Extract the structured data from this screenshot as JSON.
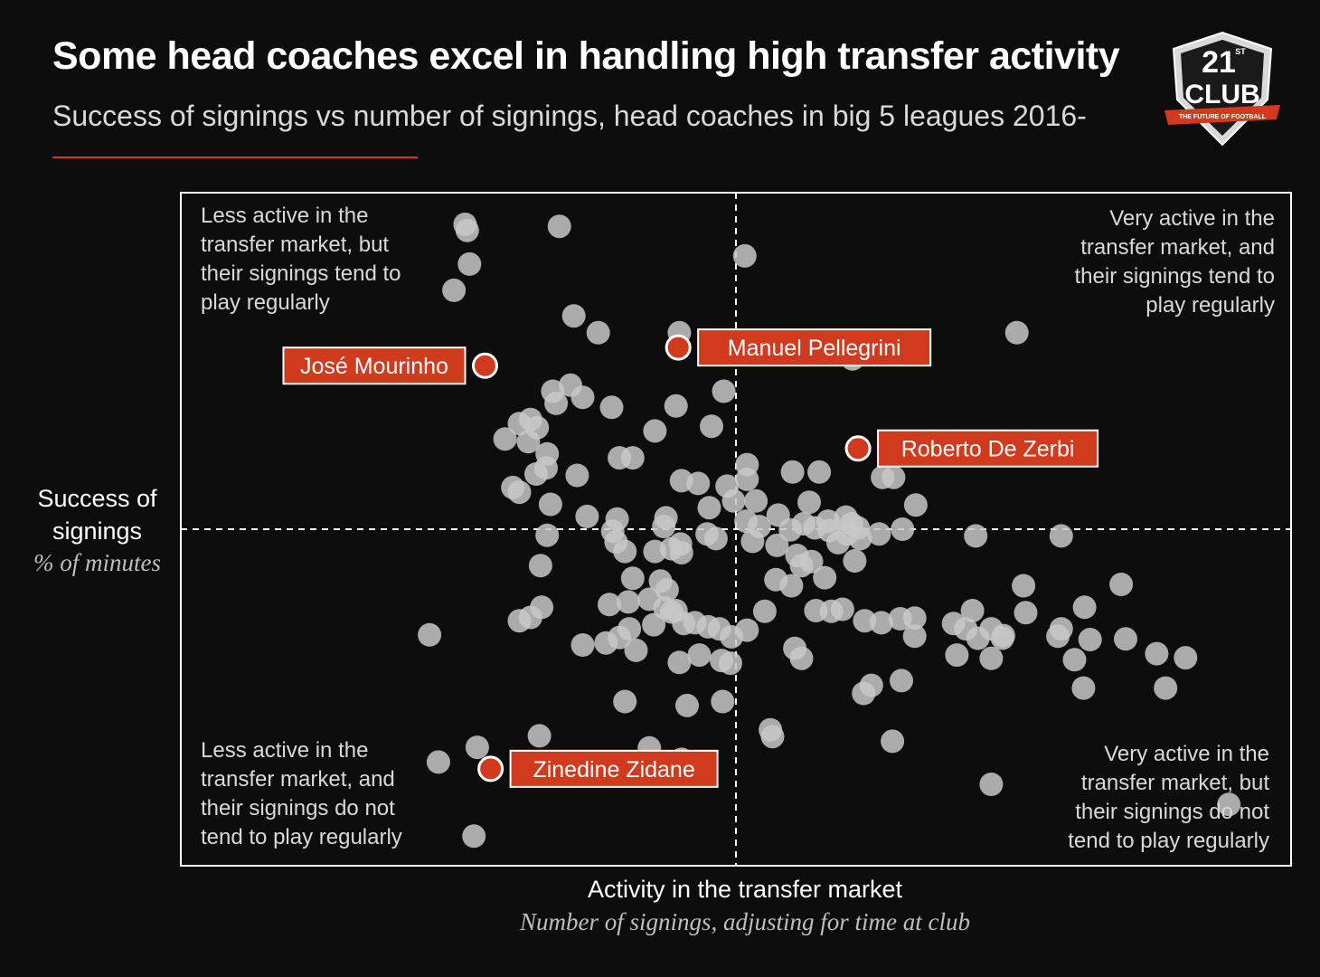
{
  "title": "Some head coaches excel in handling high transfer activity",
  "subtitle": "Success of signings vs number of signings, head coaches in big 5 leagues 2016-",
  "logo": {
    "icon": "21st-club-shield-logo",
    "text_top": "21",
    "text_sup": "ST",
    "text_main": "CLUB",
    "ribbon": "THE FUTURE OF FOOTBALL"
  },
  "colors": {
    "background": "#0d0d0d",
    "accent": "#d23a1e",
    "point": "#c8c8c8",
    "frame": "#ffffff"
  },
  "chart_data": {
    "type": "scatter",
    "xlabel": "Activity in the transfer market",
    "xlabel_sub": "Number of signings, adjusting for time at club",
    "ylabel_lines": [
      "Success of",
      "signings"
    ],
    "ylabel_sub": "% of minutes",
    "xlim": [
      0,
      100
    ],
    "ylim": [
      0,
      100
    ],
    "x_divider": 50,
    "y_divider": 50,
    "grid": false,
    "quadrant_labels": {
      "top_left": [
        "Less active in the",
        "transfer market, but",
        "their signings tend to",
        "play regularly"
      ],
      "top_right": [
        "Very active in the",
        "transfer market, and",
        "their signings tend to",
        "play regularly"
      ],
      "bottom_left": [
        "Less active in the",
        "transfer market, and",
        "their signings do not",
        "tend to play regularly"
      ],
      "bottom_right": [
        "Very active in the",
        "transfer market, but",
        "their signings do not",
        "tend to play regularly"
      ]
    },
    "highlighted": [
      {
        "label": "José Mourinho",
        "x": 27.4,
        "y": 74.3,
        "label_side": "left"
      },
      {
        "label": "Manuel Pellegrini",
        "x": 44.8,
        "y": 77.0,
        "label_side": "right"
      },
      {
        "label": "Roberto De Zerbi",
        "x": 61.0,
        "y": 62.0,
        "label_side": "right"
      },
      {
        "label": "Zinedine Zidane",
        "x": 27.9,
        "y": 14.4,
        "label_side": "right"
      }
    ],
    "points": [
      [
        25.6,
        95.3
      ],
      [
        25.8,
        94.4
      ],
      [
        34.1,
        95.0
      ],
      [
        50.8,
        90.6
      ],
      [
        26.0,
        89.4
      ],
      [
        24.6,
        85.5
      ],
      [
        35.4,
        81.7
      ],
      [
        37.6,
        79.2
      ],
      [
        44.9,
        79.2
      ],
      [
        60.5,
        75.3
      ],
      [
        75.3,
        79.2
      ],
      [
        48.9,
        70.5
      ],
      [
        33.5,
        70.5
      ],
      [
        35.1,
        71.4
      ],
      [
        36.2,
        69.6
      ],
      [
        38.8,
        68.1
      ],
      [
        44.6,
        68.3
      ],
      [
        33.8,
        68.7
      ],
      [
        30.5,
        65.7
      ],
      [
        31.5,
        66.3
      ],
      [
        32.1,
        65.1
      ],
      [
        29.2,
        63.4
      ],
      [
        31.3,
        63.0
      ],
      [
        42.7,
        64.6
      ],
      [
        47.8,
        65.3
      ],
      [
        33.0,
        61.2
      ],
      [
        35.7,
        58.0
      ],
      [
        39.5,
        60.6
      ],
      [
        40.7,
        60.6
      ],
      [
        32.9,
        59.1
      ],
      [
        32.0,
        58.2
      ],
      [
        51.0,
        59.6
      ],
      [
        45.1,
        57.2
      ],
      [
        46.6,
        56.8
      ],
      [
        49.2,
        56.4
      ],
      [
        51.0,
        57.4
      ],
      [
        55.1,
        58.5
      ],
      [
        57.5,
        58.5
      ],
      [
        63.2,
        57.7
      ],
      [
        64.2,
        57.7
      ],
      [
        66.2,
        53.6
      ],
      [
        29.9,
        56.2
      ],
      [
        30.5,
        55.5
      ],
      [
        33.3,
        53.7
      ],
      [
        36.6,
        51.9
      ],
      [
        39.3,
        51.5
      ],
      [
        43.7,
        51.7
      ],
      [
        47.6,
        53.2
      ],
      [
        49.8,
        54.2
      ],
      [
        51.8,
        54.2
      ],
      [
        53.8,
        52.1
      ],
      [
        56.1,
        50.8
      ],
      [
        56.6,
        54.0
      ],
      [
        58.3,
        51.2
      ],
      [
        59.9,
        51.8
      ],
      [
        61.0,
        50.2
      ],
      [
        33.0,
        49.1
      ],
      [
        38.9,
        49.7
      ],
      [
        39.2,
        48.1
      ],
      [
        43.5,
        50.4
      ],
      [
        45.0,
        47.8
      ],
      [
        47.4,
        49.3
      ],
      [
        48.2,
        48.6
      ],
      [
        50.9,
        51.2
      ],
      [
        51.5,
        48.2
      ],
      [
        52.1,
        50.4
      ],
      [
        53.7,
        47.6
      ],
      [
        54.9,
        49.9
      ],
      [
        55.5,
        46.1
      ],
      [
        57.1,
        50.2
      ],
      [
        58.4,
        49.8
      ],
      [
        59.2,
        48.0
      ],
      [
        60.0,
        49.3
      ],
      [
        60.4,
        50.8
      ],
      [
        61.2,
        48.6
      ],
      [
        62.9,
        49.3
      ],
      [
        65.0,
        50.0
      ],
      [
        71.6,
        49.0
      ],
      [
        79.3,
        49.0
      ],
      [
        40.0,
        46.7
      ],
      [
        42.7,
        46.7
      ],
      [
        44.2,
        47.1
      ],
      [
        45.1,
        46.5
      ],
      [
        55.9,
        44.6
      ],
      [
        56.8,
        45.2
      ],
      [
        58.0,
        42.8
      ],
      [
        60.7,
        45.3
      ],
      [
        32.4,
        44.6
      ],
      [
        43.2,
        42.3
      ],
      [
        42.2,
        39.6
      ],
      [
        43.8,
        41.0
      ],
      [
        40.3,
        39.2
      ],
      [
        44.2,
        37.7
      ],
      [
        40.7,
        42.7
      ],
      [
        53.6,
        42.5
      ],
      [
        55.0,
        41.6
      ],
      [
        57.2,
        37.9
      ],
      [
        58.6,
        37.8
      ],
      [
        59.6,
        38.1
      ],
      [
        63.1,
        36.1
      ],
      [
        64.8,
        36.7
      ],
      [
        66.1,
        36.8
      ],
      [
        71.3,
        37.9
      ],
      [
        75.9,
        41.6
      ],
      [
        79.3,
        35.2
      ],
      [
        81.4,
        38.4
      ],
      [
        84.7,
        41.8
      ],
      [
        30.5,
        36.4
      ],
      [
        31.5,
        36.9
      ],
      [
        32.5,
        38.4
      ],
      [
        38.6,
        38.8
      ],
      [
        40.4,
        35.2
      ],
      [
        42.6,
        35.8
      ],
      [
        43.6,
        38.3
      ],
      [
        44.6,
        37.9
      ],
      [
        45.3,
        36.0
      ],
      [
        46.3,
        36.1
      ],
      [
        47.5,
        35.5
      ],
      [
        48.5,
        35.2
      ],
      [
        49.6,
        34.0
      ],
      [
        51.0,
        35.0
      ],
      [
        52.6,
        37.8
      ],
      [
        55.3,
        32.3
      ],
      [
        61.6,
        36.4
      ],
      [
        66.1,
        34.1
      ],
      [
        69.6,
        36.0
      ],
      [
        74.1,
        34.2
      ],
      [
        71.8,
        33.8
      ],
      [
        73.0,
        35.2
      ],
      [
        70.7,
        35.2
      ],
      [
        76.1,
        37.6
      ],
      [
        79.0,
        34.1
      ],
      [
        73.0,
        30.8
      ],
      [
        22.4,
        34.3
      ],
      [
        36.2,
        32.8
      ],
      [
        38.3,
        33.1
      ],
      [
        39.5,
        33.9
      ],
      [
        41.0,
        32.0
      ],
      [
        44.9,
        30.2
      ],
      [
        46.7,
        31.3
      ],
      [
        48.7,
        30.5
      ],
      [
        49.5,
        30.1
      ],
      [
        55.9,
        30.8
      ],
      [
        64.9,
        27.5
      ],
      [
        61.5,
        25.6
      ],
      [
        62.2,
        26.8
      ],
      [
        69.9,
        31.3
      ],
      [
        74.0,
        33.8
      ],
      [
        80.5,
        30.6
      ],
      [
        81.9,
        33.6
      ],
      [
        85.1,
        33.7
      ],
      [
        87.9,
        31.5
      ],
      [
        90.5,
        30.9
      ],
      [
        81.3,
        26.4
      ],
      [
        88.7,
        26.4
      ],
      [
        40.0,
        24.4
      ],
      [
        48.8,
        24.4
      ],
      [
        45.6,
        23.8
      ],
      [
        32.3,
        19.3
      ],
      [
        26.7,
        17.6
      ],
      [
        53.1,
        20.2
      ],
      [
        53.3,
        19.2
      ],
      [
        64.1,
        18.5
      ],
      [
        42.2,
        17.5
      ],
      [
        45.1,
        15.8
      ],
      [
        23.2,
        15.4
      ],
      [
        73.0,
        12.1
      ],
      [
        94.4,
        9.1
      ],
      [
        26.4,
        4.4
      ]
    ]
  }
}
